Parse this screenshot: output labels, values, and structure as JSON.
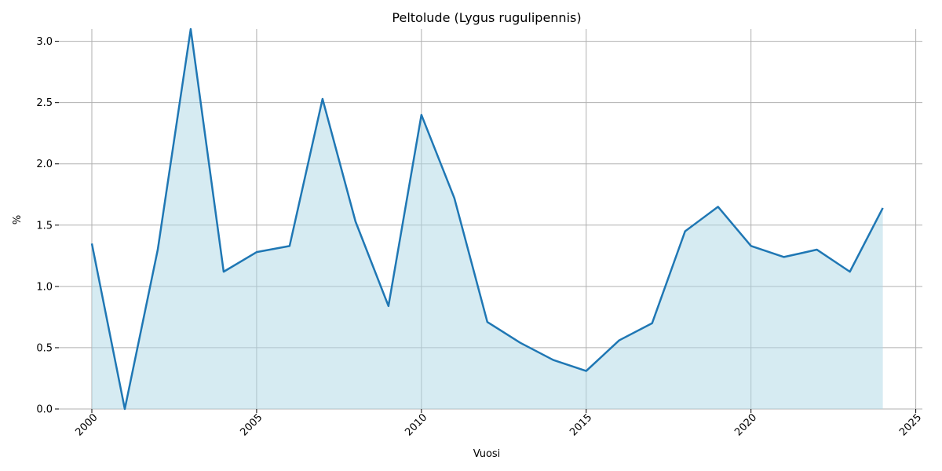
{
  "chart_data": {
    "type": "area",
    "title": "Peltolude (Lygus rugulipennis)",
    "xlabel": "Vuosi",
    "ylabel": "%",
    "xlim": [
      1999.0,
      2025.2
    ],
    "ylim": [
      0,
      3.1
    ],
    "xticks": [
      2000,
      2005,
      2010,
      2015,
      2020,
      2025
    ],
    "yticks": [
      0.0,
      0.5,
      1.0,
      1.5,
      2.0,
      2.5,
      3.0
    ],
    "ytick_labels": [
      "0.0",
      "0.5",
      "1.0",
      "1.5",
      "2.0",
      "2.5",
      "3.0"
    ],
    "grid": true,
    "x": [
      2000,
      2001,
      2002,
      2003,
      2004,
      2005,
      2006,
      2007,
      2008,
      2009,
      2010,
      2011,
      2012,
      2013,
      2014,
      2015,
      2016,
      2017,
      2018,
      2019,
      2020,
      2021,
      2022,
      2023,
      2024
    ],
    "values": [
      1.35,
      0.0,
      1.3,
      3.1,
      1.12,
      1.28,
      1.33,
      2.53,
      1.53,
      0.84,
      2.4,
      1.72,
      0.71,
      0.54,
      0.4,
      0.31,
      0.56,
      0.7,
      1.45,
      1.65,
      1.33,
      1.24,
      1.3,
      1.12,
      1.64
    ],
    "line_color": "#1f77b4",
    "fill_color": "#add8e6"
  }
}
